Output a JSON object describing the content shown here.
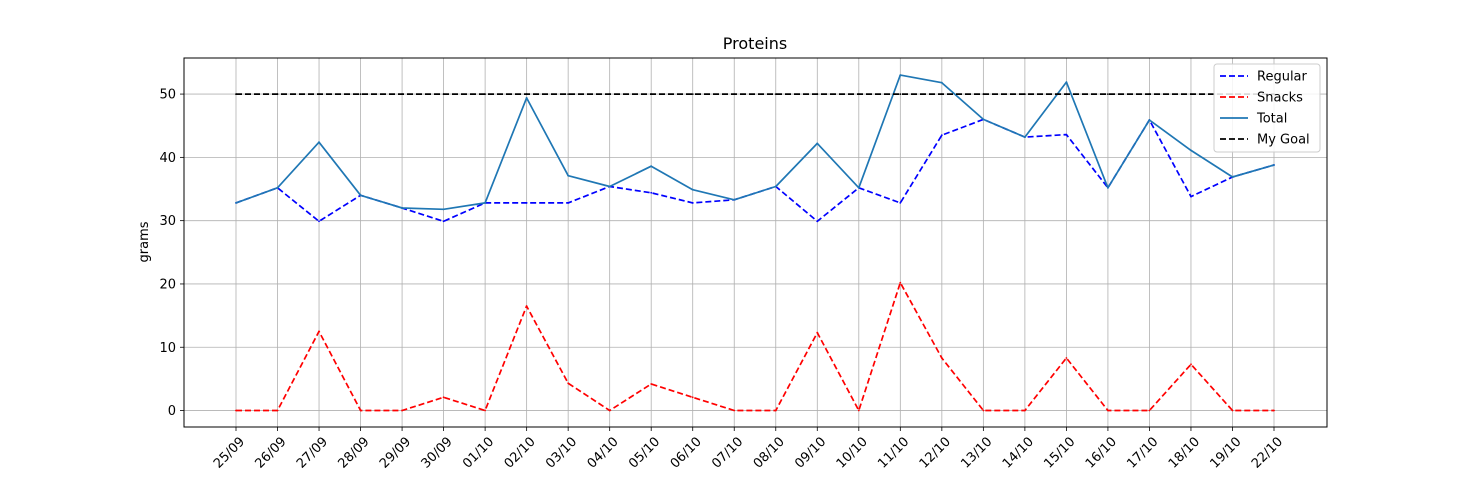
{
  "chart_data": {
    "type": "line",
    "title": "Proteins",
    "xlabel": "",
    "ylabel": "grams",
    "categories": [
      "25/09",
      "26/09",
      "27/09",
      "28/09",
      "29/09",
      "30/09",
      "01/10",
      "02/10",
      "03/10",
      "04/10",
      "05/10",
      "06/10",
      "07/10",
      "08/10",
      "09/10",
      "10/10",
      "11/10",
      "12/10",
      "13/10",
      "14/10",
      "15/10",
      "16/10",
      "17/10",
      "18/10",
      "19/10",
      "22/10"
    ],
    "ylim": [
      -2.6,
      55.7
    ],
    "yticks": [
      0,
      10,
      20,
      30,
      40,
      50
    ],
    "grid": true,
    "legend_position": "top-right",
    "series": [
      {
        "name": "Regular",
        "color": "#0000ff",
        "style": "dashed",
        "values": [
          32.8,
          35.2,
          29.9,
          34.0,
          32.0,
          29.9,
          32.8,
          32.8,
          32.8,
          35.4,
          34.4,
          32.8,
          33.3,
          35.4,
          29.9,
          35.2,
          32.8,
          43.5,
          46.0,
          43.2,
          43.6,
          35.2,
          45.9,
          33.8,
          36.9,
          38.8
        ]
      },
      {
        "name": "Snacks",
        "color": "#ff0000",
        "style": "dashed",
        "values": [
          0,
          0,
          12.5,
          0,
          0,
          2.1,
          0,
          16.5,
          4.3,
          0,
          4.2,
          2.1,
          0,
          0,
          12.3,
          0,
          20.2,
          8.3,
          0,
          0,
          8.3,
          0,
          0,
          7.3,
          0,
          0
        ]
      },
      {
        "name": "Total",
        "color": "#1f77b4",
        "style": "solid",
        "values": [
          32.8,
          35.2,
          42.4,
          34.0,
          32.0,
          31.8,
          32.8,
          49.4,
          37.1,
          35.4,
          38.6,
          34.9,
          33.3,
          35.4,
          42.2,
          35.2,
          53.0,
          51.8,
          46.0,
          43.2,
          51.9,
          35.2,
          45.9,
          41.1,
          36.9,
          38.8
        ]
      },
      {
        "name": "My Goal",
        "color": "#000000",
        "style": "dashed",
        "values": [
          50,
          50,
          50,
          50,
          50,
          50,
          50,
          50,
          50,
          50,
          50,
          50,
          50,
          50,
          50,
          50,
          50,
          50,
          50,
          50,
          50,
          50,
          50,
          50,
          50,
          50
        ]
      }
    ]
  }
}
